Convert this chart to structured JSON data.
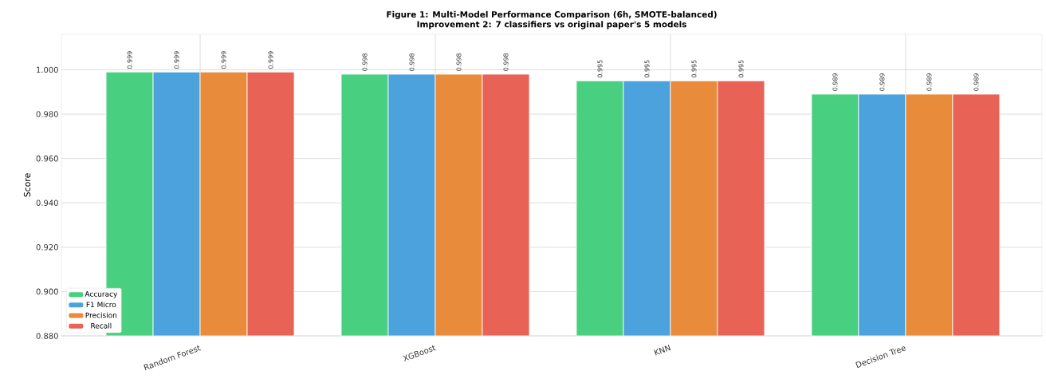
{
  "chart_data": {
    "type": "bar",
    "title": "Figure 1: Multi-Model Performance Comparison (6h, SMOTE-balanced)",
    "subtitle": "Improvement 2: 7 classifiers vs original paper's 5 models",
    "ylabel": "Score",
    "categories": [
      "Random Forest",
      "XGBoost",
      "KNN",
      "Decision Tree"
    ],
    "series": [
      {
        "name": "Accuracy",
        "color": "#48cf7f",
        "values": [
          0.999,
          0.998,
          0.995,
          0.989
        ]
      },
      {
        "name": "F1 Micro",
        "color": "#4ca2dd",
        "values": [
          0.999,
          0.998,
          0.995,
          0.989
        ]
      },
      {
        "name": "Precision",
        "color": "#e88b3a",
        "values": [
          0.999,
          0.998,
          0.995,
          0.989
        ]
      },
      {
        "name": "Recall",
        "color": "#e86356",
        "values": [
          0.999,
          0.998,
          0.995,
          0.989
        ]
      }
    ],
    "ylim": [
      0.88,
      1.016
    ],
    "yticks": [
      {
        "value": 0.88,
        "label": "0.880"
      },
      {
        "value": 0.9,
        "label": "0.900"
      },
      {
        "value": 0.92,
        "label": "0.920"
      },
      {
        "value": 0.94,
        "label": "0.940"
      },
      {
        "value": 0.96,
        "label": "0.960"
      },
      {
        "value": 0.98,
        "label": "0.980"
      },
      {
        "value": 1.0,
        "label": "1.000"
      }
    ],
    "grid": true,
    "legend": "bottom left",
    "data_labels": true
  }
}
